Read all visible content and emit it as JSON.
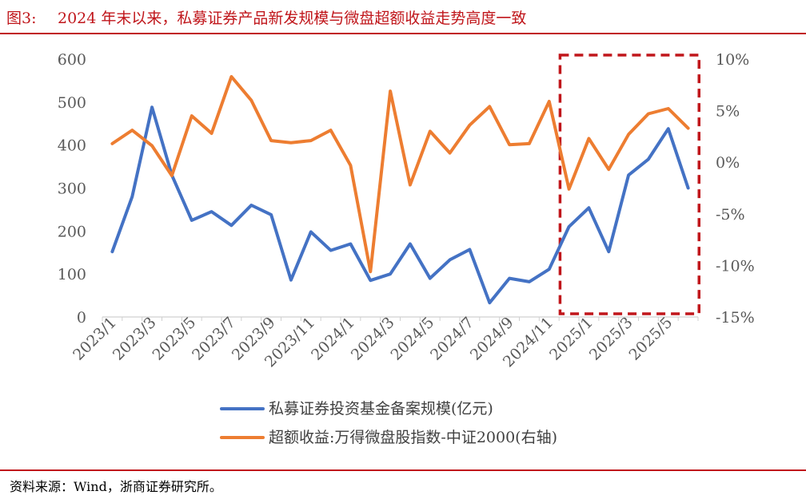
{
  "figure": {
    "number": "图3:",
    "title": "2024 年末以来，私募证券产品新发规模与微盘超额收益走势高度一致"
  },
  "source": "资料来源：Wind，浙商证券研究所。",
  "colors": {
    "scale_series": "#4472c4",
    "excess_series": "#ed7d31",
    "highlight_box": "#c0161b",
    "rule": "#c0161b",
    "axis_text": "#595959"
  },
  "chart_data": {
    "type": "line",
    "x": [
      "2023/1",
      "2023/2",
      "2023/3",
      "2023/4",
      "2023/5",
      "2023/6",
      "2023/7",
      "2023/8",
      "2023/9",
      "2023/10",
      "2023/11",
      "2023/12",
      "2024/1",
      "2024/2",
      "2024/3",
      "2024/4",
      "2024/5",
      "2024/6",
      "2024/7",
      "2024/8",
      "2024/9",
      "2024/10",
      "2024/11",
      "2024/12",
      "2025/1",
      "2025/2",
      "2025/3",
      "2025/4",
      "2025/5",
      "2025/6"
    ],
    "x_tick_labels": [
      "2023/1",
      "2023/3",
      "2023/5",
      "2023/7",
      "2023/9",
      "2023/11",
      "2024/1",
      "2024/3",
      "2024/5",
      "2024/7",
      "2024/9",
      "2024/11",
      "2025/1",
      "2025/3",
      "2025/5"
    ],
    "series": [
      {
        "name": "私募证券投资基金备案规模(亿元)",
        "axis": "left",
        "values": [
          152,
          280,
          488,
          330,
          225,
          245,
          213,
          260,
          238,
          86,
          198,
          155,
          170,
          85,
          100,
          170,
          90,
          133,
          157,
          33,
          90,
          82,
          111,
          210,
          254,
          152,
          330,
          367,
          438,
          300
        ]
      },
      {
        "name": "超额收益:万得微盘股指数-中证2000(右轴)",
        "axis": "right",
        "values": [
          1.8,
          3.1,
          1.6,
          -1.3,
          4.5,
          2.8,
          8.3,
          6.0,
          2.1,
          1.9,
          2.1,
          3.1,
          -0.3,
          -10.6,
          6.9,
          -2.2,
          3.0,
          0.9,
          3.6,
          5.4,
          1.7,
          1.8,
          5.9,
          -2.6,
          2.3,
          -0.7,
          2.7,
          4.7,
          5.2,
          3.3
        ]
      }
    ],
    "y_left": {
      "min": 0,
      "max": 600,
      "ticks": [
        0,
        100,
        200,
        300,
        400,
        500,
        600
      ],
      "tick_labels": [
        "0",
        "100",
        "200",
        "300",
        "400",
        "500",
        "600"
      ]
    },
    "y_right": {
      "min": -15,
      "max": 10,
      "ticks": [
        -15,
        -10,
        -5,
        0,
        5,
        10
      ],
      "tick_labels": [
        "-15%",
        "-10%",
        "-5%",
        "0%",
        "5%",
        "10%"
      ]
    },
    "highlight_range": [
      "2024/12",
      "2025/6"
    ],
    "grid": false,
    "legend_position": "bottom"
  }
}
